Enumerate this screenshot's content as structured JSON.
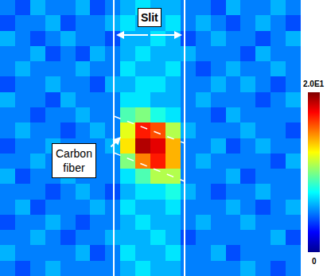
{
  "chart_data": {
    "type": "heatmap",
    "annotations": [
      "Slit",
      "Carbon fiber"
    ],
    "tick_labels": false,
    "colorbar": {
      "range": [
        0,
        20
      ],
      "ticks": [
        0,
        {
          "value": 20,
          "label": "2.0E1"
        }
      ]
    },
    "cells": [
      [
        5,
        4,
        6,
        5,
        5,
        6,
        4,
        5,
        6,
        7,
        6,
        6,
        5,
        5,
        4,
        6,
        5,
        5,
        6,
        5
      ],
      [
        4,
        5,
        5,
        6,
        4,
        5,
        5,
        6,
        7,
        6,
        6,
        7,
        5,
        6,
        5,
        4,
        5,
        6,
        5,
        4
      ],
      [
        6,
        5,
        4,
        5,
        6,
        5,
        5,
        4,
        6,
        6,
        7,
        6,
        4,
        5,
        6,
        5,
        5,
        4,
        5,
        6
      ],
      [
        5,
        5,
        6,
        4,
        5,
        4,
        6,
        5,
        6,
        7,
        6,
        6,
        6,
        5,
        5,
        5,
        4,
        6,
        5,
        5
      ],
      [
        5,
        6,
        5,
        5,
        5,
        6,
        5,
        5,
        7,
        6,
        6,
        7,
        5,
        4,
        5,
        6,
        5,
        5,
        6,
        5
      ],
      [
        4,
        5,
        5,
        6,
        5,
        5,
        4,
        6,
        6,
        7,
        7,
        6,
        5,
        5,
        6,
        5,
        6,
        5,
        4,
        5
      ],
      [
        6,
        5,
        5,
        4,
        6,
        5,
        5,
        5,
        7,
        7,
        6,
        6,
        5,
        6,
        5,
        5,
        5,
        4,
        5,
        6
      ],
      [
        5,
        5,
        4,
        5,
        5,
        6,
        5,
        5,
        9,
        10,
        8,
        7,
        5,
        5,
        4,
        6,
        5,
        5,
        5,
        5
      ],
      [
        5,
        6,
        5,
        5,
        4,
        5,
        6,
        5,
        12,
        17,
        16,
        11,
        6,
        5,
        5,
        5,
        6,
        5,
        5,
        4
      ],
      [
        4,
        5,
        5,
        6,
        5,
        5,
        5,
        6,
        13,
        19,
        18,
        14,
        5,
        5,
        6,
        4,
        5,
        6,
        5,
        5
      ],
      [
        5,
        5,
        6,
        5,
        5,
        4,
        5,
        5,
        10,
        15,
        17,
        14,
        5,
        6,
        5,
        5,
        5,
        5,
        4,
        6
      ],
      [
        6,
        4,
        5,
        5,
        6,
        5,
        5,
        5,
        7,
        9,
        11,
        11,
        5,
        5,
        5,
        6,
        4,
        5,
        5,
        5
      ],
      [
        5,
        5,
        5,
        4,
        5,
        6,
        5,
        4,
        6,
        7,
        7,
        8,
        6,
        5,
        4,
        5,
        5,
        6,
        5,
        5
      ],
      [
        5,
        6,
        4,
        5,
        5,
        5,
        6,
        5,
        7,
        6,
        6,
        7,
        5,
        5,
        5,
        6,
        5,
        4,
        5,
        6
      ],
      [
        4,
        5,
        5,
        6,
        5,
        4,
        5,
        5,
        6,
        7,
        6,
        6,
        5,
        6,
        5,
        5,
        6,
        5,
        5,
        5
      ],
      [
        5,
        5,
        6,
        5,
        4,
        5,
        5,
        6,
        6,
        6,
        7,
        6,
        4,
        5,
        5,
        5,
        5,
        5,
        6,
        4
      ],
      [
        6,
        5,
        5,
        5,
        5,
        6,
        4,
        5,
        7,
        6,
        6,
        7,
        5,
        5,
        6,
        4,
        5,
        5,
        5,
        5
      ],
      [
        5,
        4,
        5,
        6,
        5,
        5,
        5,
        5,
        6,
        7,
        6,
        6,
        5,
        5,
        5,
        5,
        6,
        5,
        4,
        5
      ]
    ]
  }
}
